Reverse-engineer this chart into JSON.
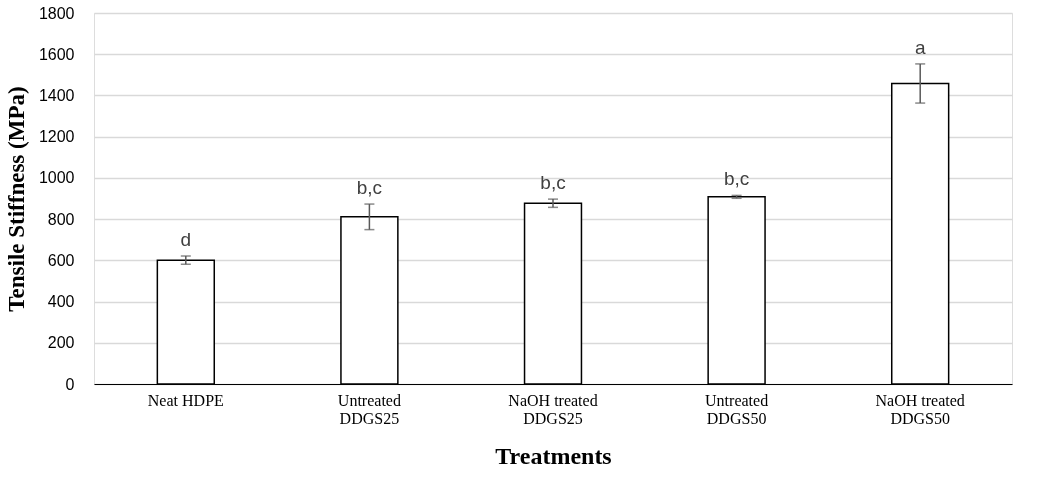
{
  "chart_data": {
    "type": "bar",
    "xlabel": "Treatments",
    "ylabel": "Tensile Stiffness (MPa)",
    "categories": [
      "Neat HDPE",
      "Untreated DDGS25",
      "NaOH treated DDGS25",
      "Untreated DDGS50",
      "NaOH treated DDGS50"
    ],
    "values": [
      601,
      811,
      877,
      908,
      1458
    ],
    "errors": [
      20,
      62,
      20,
      7,
      95
    ],
    "color": "#ffffff",
    "ylim": [
      0,
      1800
    ],
    "yticks": [
      0,
      200,
      400,
      600,
      800,
      1000,
      1200,
      1400,
      1600,
      1800
    ],
    "grid": "y",
    "annotations": [
      "d",
      "b,c",
      "b,c",
      "b,c",
      "a"
    ]
  }
}
